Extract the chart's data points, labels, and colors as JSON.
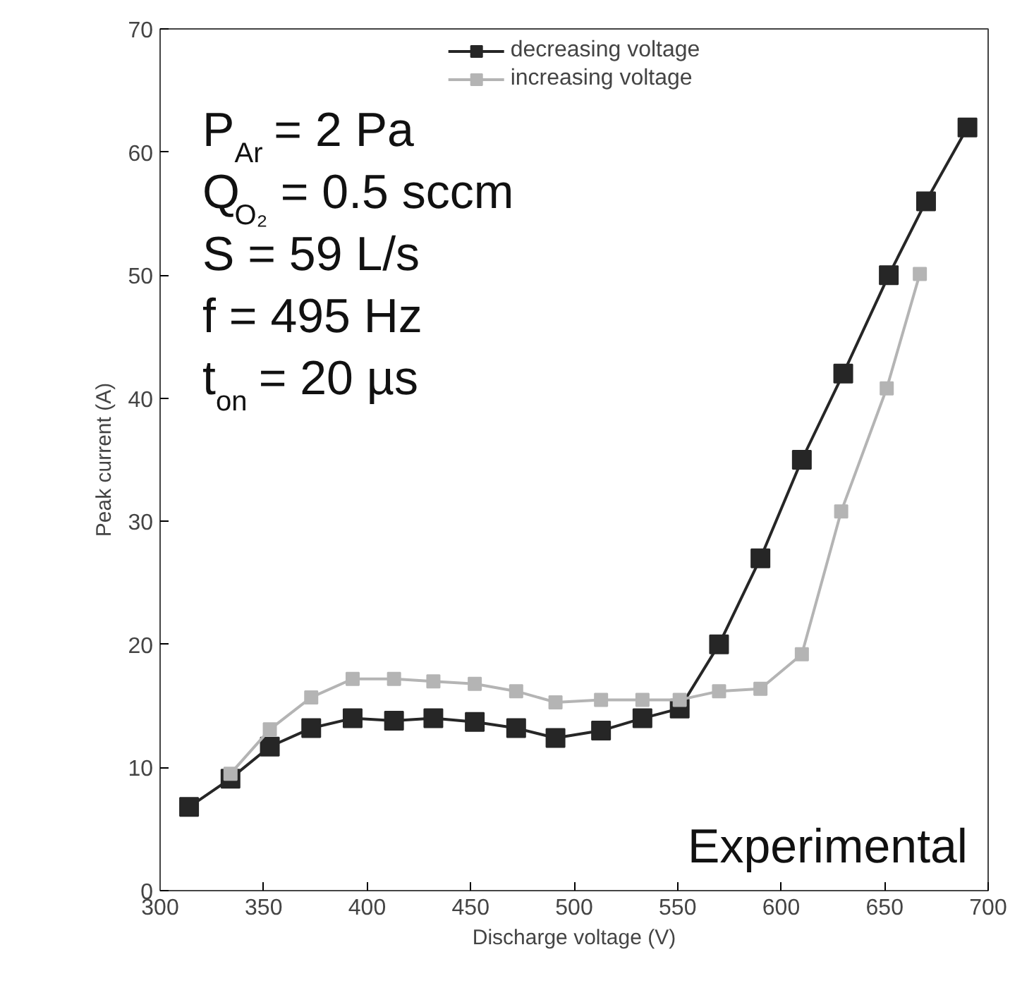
{
  "chart_data": {
    "type": "line",
    "xlabel": "Discharge voltage (V)",
    "ylabel": "Peak current (A)",
    "series": [
      {
        "name": "decreasing voltage",
        "color": "#262626",
        "x": [
          314,
          334,
          353,
          373,
          393,
          413,
          432,
          452,
          472,
          491,
          513,
          533,
          551,
          570,
          590,
          610,
          630,
          652,
          670,
          690
        ],
        "values": [
          6.8,
          9.1,
          11.7,
          13.2,
          14.0,
          13.8,
          14.0,
          13.7,
          13.2,
          12.4,
          13.0,
          14.0,
          14.8,
          20.0,
          27.0,
          35.0,
          42.0,
          50.0,
          56.0,
          62.0
        ]
      },
      {
        "name": "increasing voltage",
        "color": "#b4b4b4",
        "x": [
          334,
          353,
          373,
          393,
          413,
          432,
          452,
          472,
          491,
          513,
          533,
          551,
          570,
          590,
          610,
          629,
          651,
          667
        ],
        "values": [
          9.5,
          13.1,
          15.7,
          17.2,
          17.2,
          17.0,
          16.8,
          16.2,
          15.3,
          15.5,
          15.5,
          15.5,
          16.2,
          16.4,
          19.2,
          30.8,
          40.8,
          50.1
        ]
      }
    ],
    "xlim": [
      300,
      700
    ],
    "xticks": [
      300,
      350,
      400,
      450,
      500,
      550,
      600,
      650,
      700
    ],
    "ylim": [
      0,
      70
    ],
    "yticks": [
      0,
      10,
      20,
      30,
      40,
      50,
      60,
      70
    ],
    "marker": "square",
    "line_style": "solid",
    "grid": false,
    "legend": "top",
    "annotations": [
      "P$_{Ar}$ = 2 Pa",
      "Q$_{O₂}$ = 0.5 sccm",
      "S = 59 L/s",
      "f = 495 Hz",
      "t$_{on}$= 20 µs",
      "Experimental"
    ]
  }
}
